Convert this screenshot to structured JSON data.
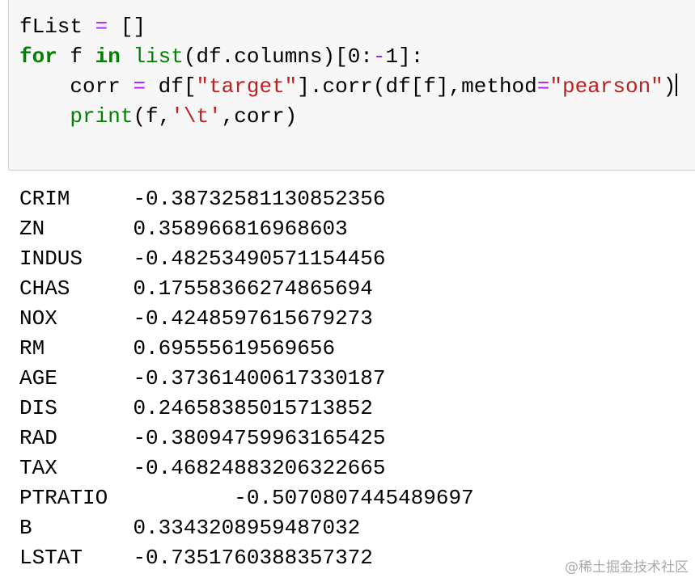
{
  "code_cell": {
    "lines": [
      [
        {
          "t": "fList ",
          "c": ""
        },
        {
          "t": "=",
          "c": "op"
        },
        {
          "t": " []",
          "c": ""
        }
      ],
      [
        {
          "t": "for",
          "c": "kw"
        },
        {
          "t": " f ",
          "c": ""
        },
        {
          "t": "in",
          "c": "kw"
        },
        {
          "t": " ",
          "c": ""
        },
        {
          "t": "list",
          "c": "bi"
        },
        {
          "t": "(df.columns)[0:",
          "c": ""
        },
        {
          "t": "-",
          "c": "op"
        },
        {
          "t": "1]:",
          "c": ""
        }
      ],
      [
        {
          "t": "    corr ",
          "c": ""
        },
        {
          "t": "=",
          "c": "op"
        },
        {
          "t": " df[",
          "c": ""
        },
        {
          "t": "\"target\"",
          "c": "str"
        },
        {
          "t": "].corr(df[f],method",
          "c": ""
        },
        {
          "t": "=",
          "c": "op"
        },
        {
          "t": "\"pearson\"",
          "c": "str"
        },
        {
          "t": ")",
          "c": ""
        }
      ],
      [
        {
          "t": "    ",
          "c": ""
        },
        {
          "t": "print",
          "c": "bi"
        },
        {
          "t": "(f,",
          "c": ""
        },
        {
          "t": "'\\t'",
          "c": "str"
        },
        {
          "t": ",corr)",
          "c": ""
        }
      ]
    ]
  },
  "output": [
    {
      "name": "CRIM",
      "value": "-0.38732581130852356"
    },
    {
      "name": "ZN",
      "value": "0.358966816968603"
    },
    {
      "name": "INDUS",
      "value": "-0.48253490571154456"
    },
    {
      "name": "CHAS",
      "value": "0.17558366274865694"
    },
    {
      "name": "NOX",
      "value": "-0.4248597615679273"
    },
    {
      "name": "RM",
      "value": "0.69555619569656"
    },
    {
      "name": "AGE",
      "value": "-0.37361400617330187"
    },
    {
      "name": "DIS",
      "value": "0.24658385015713852"
    },
    {
      "name": "RAD",
      "value": "-0.38094759963165425"
    },
    {
      "name": "TAX",
      "value": "-0.46824883206322665"
    },
    {
      "name": "PTRATIO",
      "value": "-0.5070807445489697"
    },
    {
      "name": "B",
      "value": "0.3343208959487032"
    },
    {
      "name": "LSTAT",
      "value": "-0.7351760388357372"
    }
  ],
  "watermark": "@稀土掘金技术社区"
}
